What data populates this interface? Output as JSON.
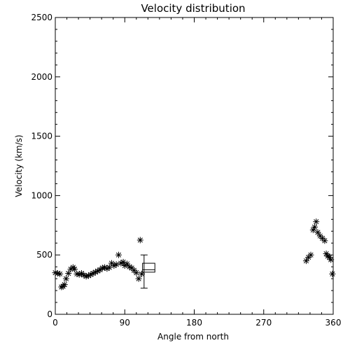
{
  "chart_data": {
    "type": "scatter",
    "title": "Velocity distribution",
    "xlabel": "Angle from north",
    "ylabel": "Velocity (km/s)",
    "xlim": [
      0,
      360
    ],
    "ylim": [
      0,
      2500
    ],
    "xticks": [
      0,
      90,
      180,
      270,
      360
    ],
    "yticks": [
      0,
      500,
      1000,
      1500,
      2000,
      2500
    ],
    "grid": false,
    "marker": "asterisk",
    "color": "#000000",
    "points": [
      [
        0,
        350
      ],
      [
        3,
        345
      ],
      [
        6,
        340
      ],
      [
        8,
        230
      ],
      [
        10,
        235
      ],
      [
        12,
        250
      ],
      [
        14,
        300
      ],
      [
        17,
        345
      ],
      [
        20,
        380
      ],
      [
        23,
        395
      ],
      [
        25,
        380
      ],
      [
        28,
        340
      ],
      [
        31,
        335
      ],
      [
        34,
        345
      ],
      [
        37,
        330
      ],
      [
        40,
        320
      ],
      [
        43,
        325
      ],
      [
        46,
        335
      ],
      [
        49,
        345
      ],
      [
        52,
        355
      ],
      [
        55,
        365
      ],
      [
        58,
        375
      ],
      [
        61,
        390
      ],
      [
        64,
        395
      ],
      [
        67,
        385
      ],
      [
        70,
        395
      ],
      [
        73,
        430
      ],
      [
        76,
        410
      ],
      [
        79,
        420
      ],
      [
        82,
        500
      ],
      [
        85,
        430
      ],
      [
        88,
        440
      ],
      [
        90,
        410
      ],
      [
        93,
        425
      ],
      [
        96,
        400
      ],
      [
        99,
        390
      ],
      [
        102,
        370
      ],
      [
        105,
        350
      ],
      [
        108,
        300
      ],
      [
        110,
        625
      ],
      [
        112,
        340
      ],
      [
        325,
        450
      ],
      [
        328,
        480
      ],
      [
        331,
        500
      ],
      [
        334,
        710
      ],
      [
        336,
        735
      ],
      [
        338,
        780
      ],
      [
        340,
        690
      ],
      [
        343,
        660
      ],
      [
        346,
        640
      ],
      [
        349,
        620
      ],
      [
        351,
        510
      ],
      [
        353,
        490
      ],
      [
        355,
        480
      ],
      [
        357,
        460
      ],
      [
        359,
        340
      ]
    ],
    "box": {
      "x_range": [
        113,
        129
      ],
      "q1": 355,
      "median": 375,
      "q3": 430,
      "whisker_x": 115,
      "whisker_low": 220,
      "whisker_high": 500
    }
  }
}
